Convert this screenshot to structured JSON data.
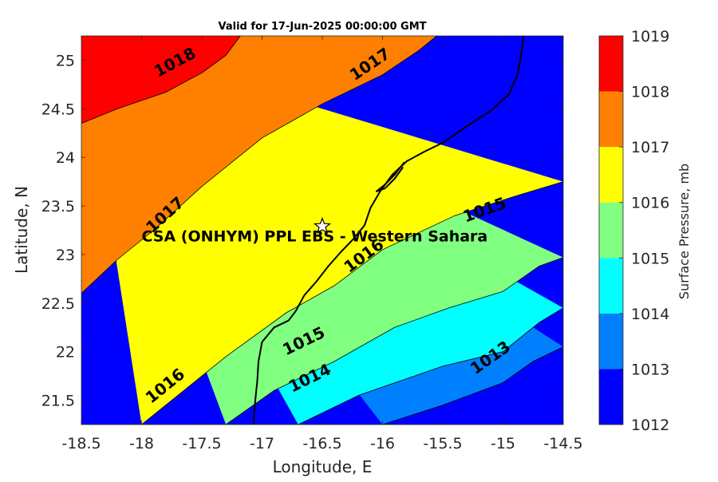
{
  "chart_data": {
    "type": "contour",
    "title": "Valid for 17-Jun-2025 00:00:00 GMT",
    "xlabel": "Longitude, E",
    "ylabel": "Latitude, N",
    "xlim": [
      -18.5,
      -14.5
    ],
    "ylim": [
      21.25,
      25.25
    ],
    "x_ticks": [
      -18.5,
      -18,
      -17.5,
      -17,
      -16.5,
      -16,
      -15.5,
      -15,
      -14.5
    ],
    "x_tick_labels": [
      "-18.5",
      "-18",
      "-17.5",
      "-17",
      "-16.5",
      "-16",
      "-15.5",
      "-15",
      "-14.5"
    ],
    "y_ticks": [
      21.5,
      22,
      22.5,
      23,
      23.5,
      24,
      24.5,
      25
    ],
    "y_tick_labels": [
      "21.5",
      "22",
      "22.5",
      "23",
      "23.5",
      "24",
      "24.5",
      "25"
    ],
    "colorbar": {
      "label": "Surface Pressure, mb",
      "levels": [
        1012,
        1013,
        1014,
        1015,
        1016,
        1017,
        1018,
        1019
      ],
      "tick_labels": [
        "1012",
        "1013",
        "1014",
        "1015",
        "1016",
        "1017",
        "1018",
        "1019"
      ],
      "colors": [
        "#0000ff",
        "#0080ff",
        "#00ffff",
        "#80ff80",
        "#ffff00",
        "#ff8000",
        "#ff0000",
        "#800000"
      ]
    },
    "bands": [
      {
        "from": 1012,
        "to": 1013,
        "color": "#0000ff"
      },
      {
        "from": 1013,
        "to": 1014,
        "color": "#0080ff"
      },
      {
        "from": 1014,
        "to": 1015,
        "color": "#00ffff"
      },
      {
        "from": 1015,
        "to": 1016,
        "color": "#80ff80"
      },
      {
        "from": 1016,
        "to": 1017,
        "color": "#ffff00"
      },
      {
        "from": 1017,
        "to": 1018,
        "color": "#ff8000"
      },
      {
        "from": 1018,
        "to": 1019,
        "color": "#ff0000"
      }
    ],
    "contours": [
      {
        "level": 1018,
        "points": [
          [
            -18.5,
            24.35
          ],
          [
            -18.2,
            24.5
          ],
          [
            -17.8,
            24.67
          ],
          [
            -17.5,
            24.87
          ],
          [
            -17.3,
            25.05
          ],
          [
            -17.18,
            25.25
          ]
        ]
      },
      {
        "level": 1017,
        "points": [
          [
            -18.5,
            22.6
          ],
          [
            -18.2,
            22.95
          ],
          [
            -17.9,
            23.25
          ],
          [
            -17.5,
            23.7
          ],
          [
            -17.0,
            24.2
          ],
          [
            -16.5,
            24.55
          ],
          [
            -16.0,
            24.85
          ],
          [
            -15.7,
            25.1
          ],
          [
            -15.55,
            25.25
          ]
        ]
      },
      {
        "level": 1016,
        "points": [
          [
            -18.0,
            21.25
          ],
          [
            -17.7,
            21.55
          ],
          [
            -17.3,
            21.95
          ],
          [
            -16.8,
            22.4
          ],
          [
            -16.4,
            22.68
          ],
          [
            -16.0,
            23.05
          ],
          [
            -15.4,
            23.4
          ],
          [
            -14.9,
            23.6
          ],
          [
            -14.5,
            23.75
          ]
        ]
      },
      {
        "level": 1015,
        "points": [
          [
            -17.3,
            21.25
          ],
          [
            -16.9,
            21.6
          ],
          [
            -16.4,
            21.9
          ],
          [
            -15.9,
            22.25
          ],
          [
            -15.45,
            22.45
          ],
          [
            -15.0,
            22.62
          ],
          [
            -14.7,
            22.88
          ],
          [
            -14.5,
            22.97
          ]
        ]
      },
      {
        "level": 1014,
        "points": [
          [
            -16.7,
            21.25
          ],
          [
            -16.2,
            21.55
          ],
          [
            -15.5,
            21.85
          ],
          [
            -15.0,
            22.0
          ],
          [
            -14.7,
            22.3
          ],
          [
            -14.5,
            22.45
          ]
        ]
      },
      {
        "level": 1013,
        "points": [
          [
            -16.0,
            21.25
          ],
          [
            -15.5,
            21.45
          ],
          [
            -15.0,
            21.68
          ],
          [
            -14.75,
            21.9
          ],
          [
            -14.5,
            22.05
          ]
        ]
      }
    ],
    "contour_labels": [
      {
        "level": 1018,
        "text": "1018",
        "lon": -17.72,
        "lat": 24.97
      },
      {
        "level": 1017,
        "text": "1017",
        "lon": -16.1,
        "lat": 24.95
      },
      {
        "level": 1017,
        "text": "1017",
        "lon": -17.8,
        "lat": 23.4
      },
      {
        "level": 1016,
        "text": "1016",
        "lon": -16.15,
        "lat": 22.98
      },
      {
        "level": 1016,
        "text": "1016",
        "lon": -17.8,
        "lat": 21.64
      },
      {
        "level": 1015,
        "text": "1015",
        "lon": -15.15,
        "lat": 23.45
      },
      {
        "level": 1015,
        "text": "1015",
        "lon": -16.65,
        "lat": 22.1
      },
      {
        "level": 1014,
        "text": "1014",
        "lon": -16.6,
        "lat": 21.72
      },
      {
        "level": 1013,
        "text": "1013",
        "lon": -15.1,
        "lat": 21.93
      }
    ],
    "coastline": [
      [
        -17.07,
        21.25
      ],
      [
        -17.06,
        21.45
      ],
      [
        -17.04,
        21.7
      ],
      [
        -17.03,
        21.9
      ],
      [
        -17.0,
        22.1
      ],
      [
        -16.9,
        22.25
      ],
      [
        -16.78,
        22.32
      ],
      [
        -16.72,
        22.42
      ],
      [
        -16.65,
        22.58
      ],
      [
        -16.55,
        22.72
      ],
      [
        -16.45,
        22.88
      ],
      [
        -16.35,
        23.02
      ],
      [
        -16.25,
        23.15
      ],
      [
        -16.15,
        23.3
      ],
      [
        -16.1,
        23.48
      ],
      [
        -16.02,
        23.65
      ],
      [
        -15.92,
        23.82
      ],
      [
        -15.8,
        23.96
      ],
      [
        -15.65,
        24.06
      ],
      [
        -15.5,
        24.15
      ],
      [
        -15.3,
        24.32
      ],
      [
        -15.1,
        24.48
      ],
      [
        -14.95,
        24.65
      ],
      [
        -14.88,
        24.85
      ],
      [
        -14.85,
        25.05
      ],
      [
        -14.83,
        25.25
      ]
    ],
    "peninsula": [
      [
        -15.82,
        23.95
      ],
      [
        -15.9,
        23.82
      ],
      [
        -15.98,
        23.72
      ],
      [
        -16.05,
        23.65
      ],
      [
        -15.98,
        23.68
      ],
      [
        -15.9,
        23.78
      ],
      [
        -15.83,
        23.9
      ]
    ],
    "marker": {
      "symbol": "star",
      "lon": -16.5,
      "lat": 23.29,
      "label": "CSA (ONHYM) PPL EBS - Western Sahara",
      "label_lon": -18.0,
      "label_lat": 23.18
    }
  }
}
